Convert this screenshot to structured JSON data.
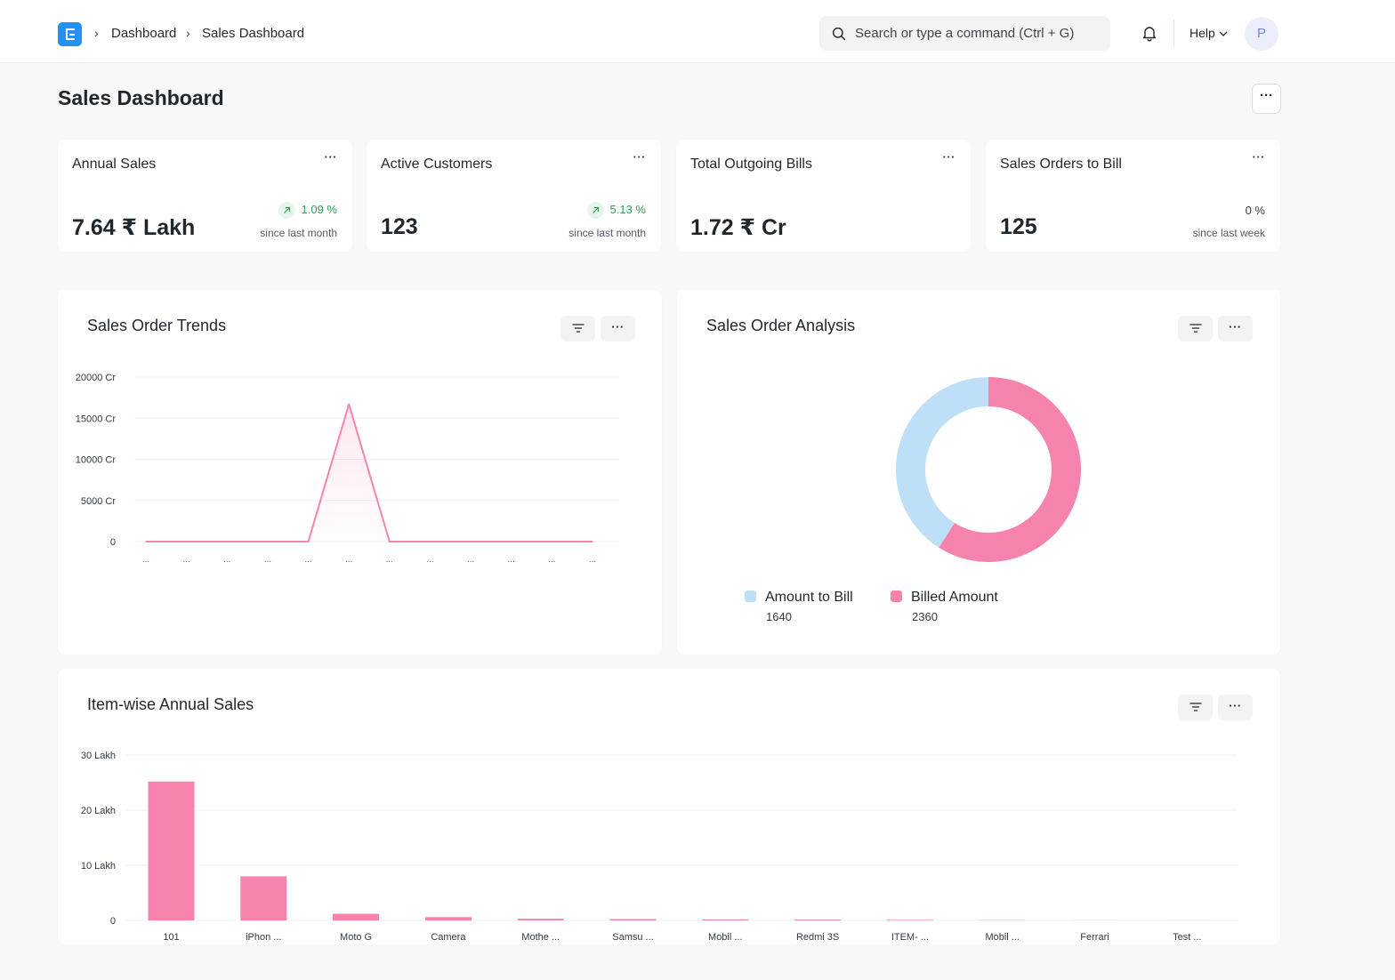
{
  "navbar": {
    "breadcrumbs": [
      "Dashboard",
      "Sales Dashboard"
    ],
    "search_placeholder": "Search or type a command (Ctrl + G)",
    "help_label": "Help",
    "avatar_initial": "P"
  },
  "page": {
    "title": "Sales Dashboard",
    "menu_label": "···"
  },
  "number_cards": [
    {
      "title": "Annual Sales",
      "value": "7.64 ₹ Lakh",
      "change": "1.09 %",
      "since": "since last month",
      "trend": "up"
    },
    {
      "title": "Active Customers",
      "value": "123",
      "change": "5.13 %",
      "since": "since last month",
      "trend": "up"
    },
    {
      "title": "Total Outgoing Bills",
      "value": "1.72 ₹ Cr",
      "change": "",
      "since": "",
      "trend": "none"
    },
    {
      "title": "Sales Orders to Bill",
      "value": "125",
      "change": "0 %",
      "since": "since last week",
      "trend": "neutral"
    }
  ],
  "card_menu_label": "···",
  "colors": {
    "accent": "#2490ef",
    "pink": "#f683ae",
    "light_blue": "#bddff8",
    "green": "#2f9d58"
  },
  "chart_data": [
    {
      "type": "line",
      "title": "Sales Order Trends",
      "x": [
        "...",
        "...",
        "...",
        "...",
        "...",
        "...",
        "...",
        "...",
        "...",
        "...",
        "...",
        "..."
      ],
      "series": [
        {
          "values": [
            0,
            0,
            0,
            0,
            0,
            16700,
            0,
            0,
            0,
            0,
            0,
            0
          ]
        }
      ],
      "y_ticks": [
        0,
        5000,
        10000,
        15000,
        20000
      ],
      "y_tick_labels": [
        "0",
        "5000 Cr",
        "10000 Cr",
        "15000 Cr",
        "20000 Cr"
      ],
      "ylim": [
        0,
        20000
      ],
      "grid": true,
      "color": "#f683ae"
    },
    {
      "type": "pie",
      "title": "Sales Order Analysis",
      "donut": true,
      "labels": [
        "Amount to Bill",
        "Billed Amount"
      ],
      "values": [
        1640,
        2360
      ],
      "value_labels": [
        "1640",
        "2360"
      ],
      "colors": [
        "#bddff8",
        "#f683ae"
      ],
      "legend": "bottom"
    },
    {
      "type": "bar",
      "title": "Item-wise Annual Sales",
      "categories": [
        "101",
        "iPhon ...",
        "Moto G",
        "Camera",
        "Mothe ...",
        "Samsu ...",
        "Mobil ...",
        "Redmi 3S",
        "ITEM- ...",
        "Mobil ...",
        "Ferrari",
        "Test ..."
      ],
      "values": [
        2520000,
        800000,
        120000,
        60000,
        30000,
        25000,
        20000,
        15000,
        10000,
        5000,
        2000,
        1000
      ],
      "y_ticks": [
        0,
        1000000,
        2000000,
        3000000
      ],
      "y_tick_labels": [
        "0",
        "10 Lakh",
        "20 Lakh",
        "30 Lakh"
      ],
      "ylim": [
        0,
        3000000
      ],
      "grid": true,
      "color": "#f683ae"
    }
  ]
}
